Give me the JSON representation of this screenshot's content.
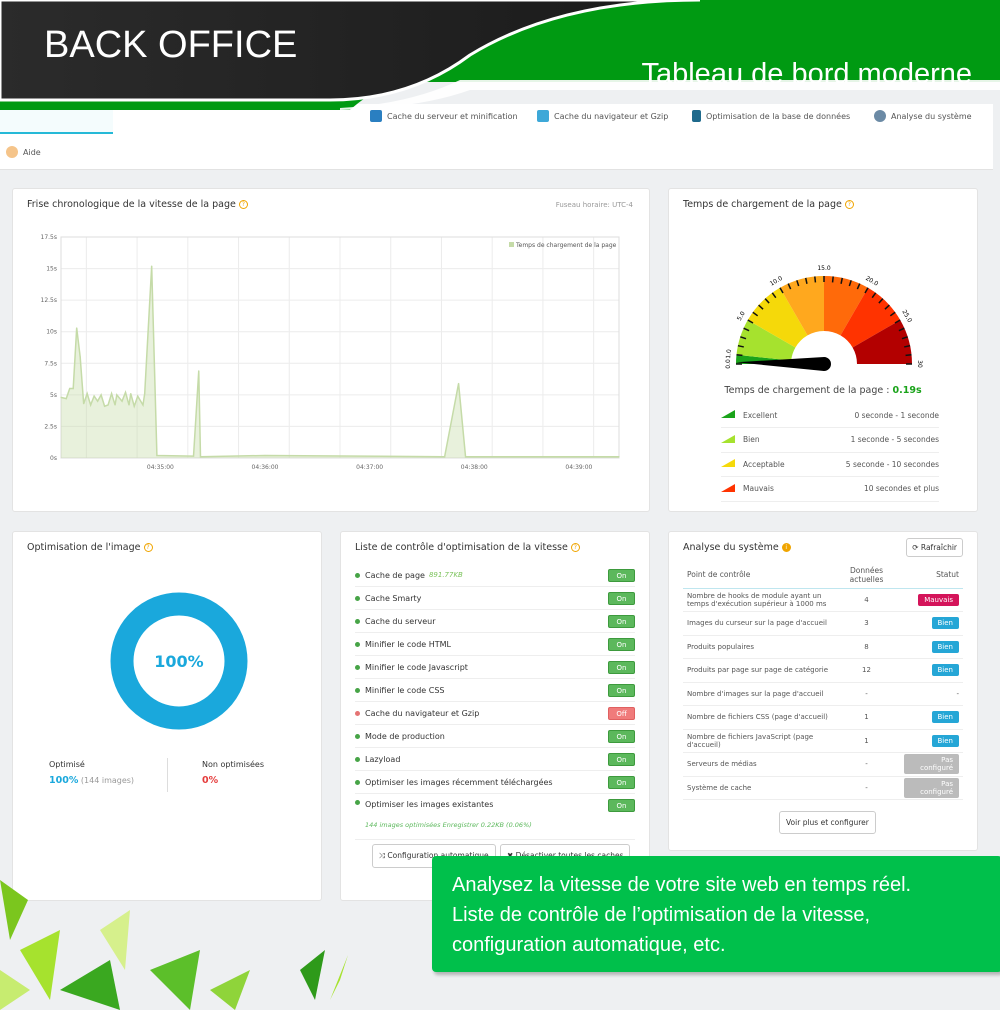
{
  "header": {
    "brand": "BACK OFFICE",
    "slogan": "Tableau de bord moderne"
  },
  "nav": {
    "tabs": [
      {
        "label": "Cache du serveur et minification"
      },
      {
        "label": "Cache du navigateur et Gzip"
      },
      {
        "label": "Optimisation de la base de données"
      },
      {
        "label": "Analyse du système"
      }
    ],
    "help": "Aide"
  },
  "timeline": {
    "title": "Frise chronologique de la vitesse de la page",
    "timezone": "Fuseau horaire: UTC-4",
    "chart_data": {
      "type": "area",
      "legend": "Temps de chargement de la page",
      "legend_position": "top-right",
      "grid": true,
      "color": "#c5dba8",
      "ylim": [
        0,
        17.5
      ],
      "yticks": [
        "0s",
        "2.5s",
        "5s",
        "7.5s",
        "10s",
        "12.5s",
        "15s",
        "17.5s"
      ],
      "xlim": [
        "04:34:03",
        "04:39:23"
      ],
      "xticks": [
        "04:35:00",
        "04:36:00",
        "04:37:00",
        "04:38:00",
        "04:39:00"
      ],
      "x": [
        "04:34:03",
        "04:34:06",
        "04:34:08",
        "04:34:10",
        "04:34:12",
        "04:34:14",
        "04:34:16",
        "04:34:18",
        "04:34:20",
        "04:34:22",
        "04:34:24",
        "04:34:26",
        "04:34:28",
        "04:34:30",
        "04:34:32",
        "04:34:34",
        "04:34:35",
        "04:34:38",
        "04:34:40",
        "04:34:42",
        "04:34:43",
        "04:34:45",
        "04:34:47",
        "04:34:50",
        "04:34:51",
        "04:34:55",
        "04:34:58",
        "04:35:19",
        "04:35:22",
        "04:35:23",
        "04:36:00",
        "04:37:43",
        "04:37:51",
        "04:37:55",
        "04:39:23"
      ],
      "y": [
        4.8,
        4.7,
        5.5,
        5.5,
        10.3,
        8,
        4.3,
        5.1,
        4.2,
        4.9,
        4.5,
        5,
        4.1,
        4.2,
        5.1,
        4.2,
        5,
        4.5,
        5.2,
        4.2,
        5.1,
        4.1,
        4.9,
        4.2,
        5.1,
        15.2,
        0.2,
        0.15,
        6.9,
        0.1,
        0.2,
        0.1,
        5.9,
        0.1,
        0.1
      ]
    }
  },
  "gauge": {
    "title": "Temps de chargement de la page",
    "value_label": "Temps de chargement de la page :",
    "value_text": "0.19s",
    "value": 0.19,
    "min": 0,
    "max": 30,
    "tick_labels": [
      "0.0",
      "1.0",
      "5.0",
      "10.0",
      "15.0",
      "20.0",
      "25.0",
      "30"
    ],
    "segments": [
      {
        "from": 0,
        "to": 1,
        "color": "#1aa31a"
      },
      {
        "from": 1,
        "to": 5,
        "color": "#a6e22e"
      },
      {
        "from": 5,
        "to": 10,
        "color": "#f5d90a"
      },
      {
        "from": 10,
        "to": 15,
        "color": "#ffa81e"
      },
      {
        "from": 15,
        "to": 20,
        "color": "#ff6a0a"
      },
      {
        "from": 20,
        "to": 25,
        "color": "#ff3300"
      },
      {
        "from": 25,
        "to": 30,
        "color": "#b30000"
      }
    ],
    "legend": [
      {
        "label": "Excellent",
        "range": "0 seconde - 1 seconde",
        "color": "#1aa31a"
      },
      {
        "label": "Bien",
        "range": "1 seconde - 5 secondes",
        "color": "#a6e22e"
      },
      {
        "label": "Acceptable",
        "range": "5 seconde - 10 secondes",
        "color": "#f5d90a"
      },
      {
        "label": "Mauvais",
        "range": "10 secondes et plus",
        "color": "#ff3300"
      }
    ]
  },
  "image_opt": {
    "title": "Optimisation de l'image",
    "percent_text": "100%",
    "percent": 100,
    "optimized_label": "Optimisé",
    "optimized_value": "100%",
    "optimized_count": "(144 images)",
    "not_label": "Non optimisées",
    "not_value": "0%"
  },
  "checklist": {
    "title": "Liste de contrôle d'optimisation de la vitesse",
    "items": [
      {
        "label": "Cache de page",
        "extra": "891.77KB",
        "state": "On"
      },
      {
        "label": "Cache Smarty",
        "state": "On"
      },
      {
        "label": "Cache du serveur",
        "state": "On"
      },
      {
        "label": "Minifier le code HTML",
        "state": "On"
      },
      {
        "label": "Minifier le code Javascript",
        "state": "On"
      },
      {
        "label": "Minifier le code CSS",
        "state": "On"
      },
      {
        "label": "Cache du navigateur et Gzip",
        "state": "Off"
      },
      {
        "label": "Mode de production",
        "state": "On"
      },
      {
        "label": "Lazyload",
        "state": "On"
      },
      {
        "label": "Optimiser les images récemment téléchargées",
        "state": "On"
      },
      {
        "label": "Optimiser les images existantes",
        "state": "On",
        "note1": "144 images optimisées",
        "note2": "Enregistrer 0.22KB (0.06%)"
      }
    ],
    "auto_btn": "Configuration automatique",
    "disable_btn": "Désactiver toutes les caches"
  },
  "system": {
    "title": "Analyse du système",
    "refresh": "Rafraîchir",
    "headers": [
      "Point de contrôle",
      "Données actuelles",
      "Statut"
    ],
    "rows": [
      [
        "Nombre de hooks de module ayant un temps d'exécution supérieur à 1000 ms",
        "4",
        "Mauvais"
      ],
      [
        "Images du curseur sur la page d'accueil",
        "3",
        "Bien"
      ],
      [
        "Produits populaires",
        "8",
        "Bien"
      ],
      [
        "Produits par page sur page de catégorie",
        "12",
        "Bien"
      ],
      [
        "Nombre d'images sur la page d'accueil",
        "-",
        "-"
      ],
      [
        "Nombre de fichiers CSS (page d'accueil)",
        "1",
        "Bien"
      ],
      [
        "Nombre de fichiers JavaScript (page d'accueil)",
        "1",
        "Bien"
      ],
      [
        "Serveurs de médias",
        "-",
        "Pas configuré"
      ],
      [
        "Système de cache",
        "-",
        "Pas configuré"
      ]
    ],
    "more_btn": "Voir plus et configurer"
  },
  "promo": {
    "lines": [
      "Analysez la vitesse de votre site web en temps réel.",
      "Liste de contrôle de l’optimisation de la vitesse,",
      "configuration automatique, etc."
    ]
  }
}
